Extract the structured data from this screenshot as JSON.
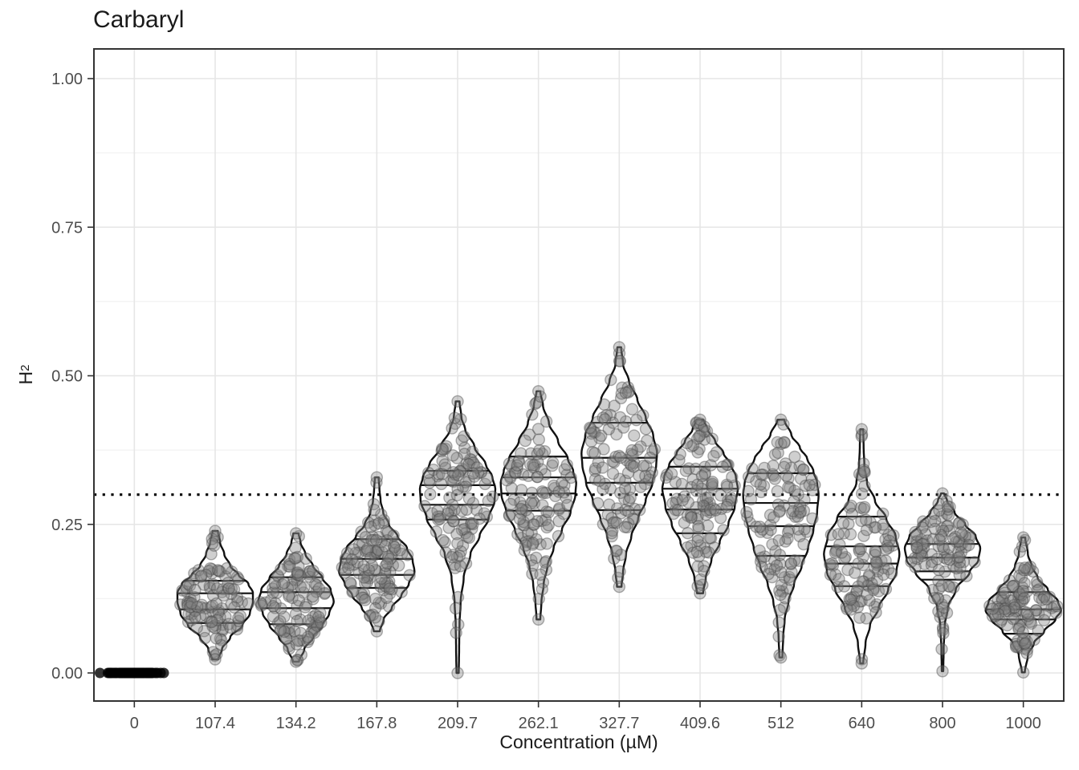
{
  "title": "Carbaryl",
  "axes": {
    "x": {
      "label": "Concentration (µM)",
      "categories": [
        "0",
        "107.4",
        "134.2",
        "167.8",
        "209.7",
        "262.1",
        "327.7",
        "409.6",
        "512",
        "640",
        "800",
        "1000"
      ]
    },
    "y": {
      "label_base": "H",
      "label_sup": "2",
      "tick_labels": [
        "0.00",
        "0.25",
        "0.50",
        "0.75",
        "1.00"
      ],
      "tick_values": [
        0,
        0.25,
        0.5,
        0.75,
        1.0
      ],
      "minor_grid_values": [
        0.125,
        0.375,
        0.625,
        0.875
      ]
    }
  },
  "colors": {
    "background": "#ffffff",
    "panel_border": "#333333",
    "grid_major": "#e6e6e6",
    "grid_minor": "#f2f2f2",
    "violin_outline": "#111111",
    "quantile_line": "#111111",
    "reference_line": "#000000",
    "point_fill": "rgba(130,130,130,0.38)",
    "point_stroke": "rgba(70,70,70,0.42)",
    "flat_point_fill": "rgba(0,0,0,0.8)",
    "tick_label": "#4d4d4d",
    "axis_tick": "#333333",
    "text": "#1a1a1a"
  },
  "chart_data": {
    "type": "violin",
    "title": "Carbaryl",
    "xlabel": "Concentration (µM)",
    "ylabel": "H^2",
    "ylim": [
      -0.047,
      1.05
    ],
    "grid": "major+minor",
    "legend": "none",
    "reference_line_y": 0.3,
    "reference_line_style": "dotted",
    "points_overlaid": true,
    "quantile_lines_drawn": [
      0.2,
      0.4,
      0.6,
      0.8
    ],
    "groups": [
      {
        "x_label": "0",
        "type": "flat",
        "value": 0.0,
        "n_points": 85
      },
      {
        "x_label": "107.4",
        "type": "violin",
        "min": 0.023,
        "max": 0.239,
        "quantile_lines": [
          0.084,
          0.107,
          0.134,
          0.155
        ],
        "n_points": 110,
        "profile": [
          [
            0.023,
            0.08
          ],
          [
            0.04,
            0.18
          ],
          [
            0.06,
            0.4
          ],
          [
            0.08,
            0.72
          ],
          [
            0.1,
            0.92
          ],
          [
            0.12,
            1.0
          ],
          [
            0.135,
            1.0
          ],
          [
            0.15,
            0.88
          ],
          [
            0.165,
            0.62
          ],
          [
            0.18,
            0.4
          ],
          [
            0.2,
            0.24
          ],
          [
            0.22,
            0.13
          ],
          [
            0.239,
            0.07
          ]
        ]
      },
      {
        "x_label": "134.2",
        "type": "violin",
        "min": 0.019,
        "max": 0.235,
        "quantile_lines": [
          0.082,
          0.109,
          0.136,
          0.161
        ],
        "n_points": 110,
        "profile": [
          [
            0.019,
            0.08
          ],
          [
            0.04,
            0.22
          ],
          [
            0.06,
            0.45
          ],
          [
            0.08,
            0.7
          ],
          [
            0.1,
            0.88
          ],
          [
            0.12,
            1.0
          ],
          [
            0.14,
            0.92
          ],
          [
            0.16,
            0.7
          ],
          [
            0.18,
            0.45
          ],
          [
            0.2,
            0.25
          ],
          [
            0.22,
            0.12
          ],
          [
            0.235,
            0.07
          ]
        ]
      },
      {
        "x_label": "167.8",
        "type": "violin",
        "min": 0.07,
        "max": 0.329,
        "quantile_lines": [
          0.143,
          0.165,
          0.192,
          0.225
        ],
        "n_points": 115,
        "profile": [
          [
            0.07,
            0.08
          ],
          [
            0.09,
            0.18
          ],
          [
            0.11,
            0.4
          ],
          [
            0.13,
            0.65
          ],
          [
            0.15,
            0.85
          ],
          [
            0.17,
            1.0
          ],
          [
            0.19,
            0.95
          ],
          [
            0.21,
            0.8
          ],
          [
            0.23,
            0.55
          ],
          [
            0.25,
            0.32
          ],
          [
            0.27,
            0.17
          ],
          [
            0.29,
            0.1
          ],
          [
            0.31,
            0.07
          ],
          [
            0.329,
            0.05
          ]
        ]
      },
      {
        "x_label": "209.7",
        "type": "violin",
        "min": 0.0,
        "max": 0.457,
        "quantile_lines": [
          0.258,
          0.283,
          0.316,
          0.34
        ],
        "n_points": 115,
        "profile": [
          [
            0.0,
            0.03
          ],
          [
            0.04,
            0.04
          ],
          [
            0.08,
            0.05
          ],
          [
            0.12,
            0.08
          ],
          [
            0.16,
            0.16
          ],
          [
            0.2,
            0.34
          ],
          [
            0.23,
            0.58
          ],
          [
            0.26,
            0.82
          ],
          [
            0.29,
            0.98
          ],
          [
            0.31,
            1.0
          ],
          [
            0.33,
            0.92
          ],
          [
            0.35,
            0.75
          ],
          [
            0.38,
            0.45
          ],
          [
            0.41,
            0.2
          ],
          [
            0.43,
            0.1
          ],
          [
            0.457,
            0.05
          ]
        ]
      },
      {
        "x_label": "262.1",
        "type": "violin",
        "min": 0.09,
        "max": 0.474,
        "quantile_lines": [
          0.273,
          0.302,
          0.329,
          0.364
        ],
        "n_points": 115,
        "profile": [
          [
            0.09,
            0.05
          ],
          [
            0.12,
            0.08
          ],
          [
            0.15,
            0.14
          ],
          [
            0.18,
            0.24
          ],
          [
            0.21,
            0.4
          ],
          [
            0.24,
            0.62
          ],
          [
            0.27,
            0.85
          ],
          [
            0.3,
            0.98
          ],
          [
            0.32,
            1.0
          ],
          [
            0.34,
            0.92
          ],
          [
            0.36,
            0.78
          ],
          [
            0.39,
            0.52
          ],
          [
            0.42,
            0.28
          ],
          [
            0.45,
            0.12
          ],
          [
            0.474,
            0.05
          ]
        ]
      },
      {
        "x_label": "327.7",
        "type": "violin",
        "min": 0.145,
        "max": 0.548,
        "quantile_lines": [
          0.274,
          0.32,
          0.362,
          0.421
        ],
        "n_points": 115,
        "profile": [
          [
            0.145,
            0.06
          ],
          [
            0.17,
            0.1
          ],
          [
            0.2,
            0.18
          ],
          [
            0.23,
            0.32
          ],
          [
            0.26,
            0.5
          ],
          [
            0.29,
            0.7
          ],
          [
            0.32,
            0.88
          ],
          [
            0.35,
            0.98
          ],
          [
            0.37,
            1.0
          ],
          [
            0.4,
            0.9
          ],
          [
            0.43,
            0.7
          ],
          [
            0.46,
            0.48
          ],
          [
            0.49,
            0.26
          ],
          [
            0.52,
            0.1
          ],
          [
            0.548,
            0.05
          ]
        ]
      },
      {
        "x_label": "409.6",
        "type": "violin",
        "min": 0.134,
        "max": 0.426,
        "quantile_lines": [
          0.235,
          0.275,
          0.31,
          0.347
        ],
        "n_points": 115,
        "profile": [
          [
            0.134,
            0.08
          ],
          [
            0.16,
            0.15
          ],
          [
            0.19,
            0.3
          ],
          [
            0.22,
            0.52
          ],
          [
            0.25,
            0.75
          ],
          [
            0.28,
            0.92
          ],
          [
            0.31,
            1.0
          ],
          [
            0.33,
            0.95
          ],
          [
            0.35,
            0.82
          ],
          [
            0.37,
            0.62
          ],
          [
            0.39,
            0.4
          ],
          [
            0.41,
            0.2
          ],
          [
            0.426,
            0.09
          ]
        ]
      },
      {
        "x_label": "512",
        "type": "violin",
        "min": 0.026,
        "max": 0.426,
        "quantile_lines": [
          0.197,
          0.247,
          0.286,
          0.336
        ],
        "n_points": 115,
        "profile": [
          [
            0.026,
            0.04
          ],
          [
            0.06,
            0.06
          ],
          [
            0.09,
            0.1
          ],
          [
            0.12,
            0.2
          ],
          [
            0.15,
            0.35
          ],
          [
            0.18,
            0.55
          ],
          [
            0.21,
            0.72
          ],
          [
            0.24,
            0.86
          ],
          [
            0.27,
            0.96
          ],
          [
            0.3,
            1.0
          ],
          [
            0.32,
            0.96
          ],
          [
            0.34,
            0.86
          ],
          [
            0.36,
            0.7
          ],
          [
            0.38,
            0.5
          ],
          [
            0.4,
            0.28
          ],
          [
            0.426,
            0.09
          ]
        ]
      },
      {
        "x_label": "640",
        "type": "violin",
        "min": 0.016,
        "max": 0.41,
        "quantile_lines": [
          0.146,
          0.184,
          0.213,
          0.263
        ],
        "n_points": 112,
        "profile": [
          [
            0.016,
            0.04
          ],
          [
            0.05,
            0.1
          ],
          [
            0.08,
            0.22
          ],
          [
            0.11,
            0.45
          ],
          [
            0.14,
            0.7
          ],
          [
            0.17,
            0.92
          ],
          [
            0.2,
            1.0
          ],
          [
            0.23,
            0.9
          ],
          [
            0.26,
            0.65
          ],
          [
            0.29,
            0.35
          ],
          [
            0.32,
            0.14
          ],
          [
            0.35,
            0.07
          ],
          [
            0.38,
            0.05
          ],
          [
            0.41,
            0.04
          ]
        ]
      },
      {
        "x_label": "800",
        "type": "violin",
        "min": 0.003,
        "max": 0.302,
        "quantile_lines": [
          0.157,
          0.171,
          0.194,
          0.217
        ],
        "n_points": 112,
        "profile": [
          [
            0.003,
            0.02
          ],
          [
            0.04,
            0.03
          ],
          [
            0.08,
            0.06
          ],
          [
            0.11,
            0.14
          ],
          [
            0.14,
            0.35
          ],
          [
            0.17,
            0.72
          ],
          [
            0.19,
            0.95
          ],
          [
            0.21,
            1.0
          ],
          [
            0.23,
            0.88
          ],
          [
            0.25,
            0.6
          ],
          [
            0.27,
            0.32
          ],
          [
            0.29,
            0.12
          ],
          [
            0.302,
            0.04
          ]
        ]
      },
      {
        "x_label": "1000",
        "type": "violin",
        "min": 0.001,
        "max": 0.228,
        "quantile_lines": [
          0.066,
          0.09,
          0.107,
          0.136
        ],
        "n_points": 110,
        "profile": [
          [
            0.001,
            0.04
          ],
          [
            0.03,
            0.12
          ],
          [
            0.05,
            0.28
          ],
          [
            0.07,
            0.55
          ],
          [
            0.09,
            0.85
          ],
          [
            0.105,
            1.0
          ],
          [
            0.12,
            0.92
          ],
          [
            0.14,
            0.65
          ],
          [
            0.16,
            0.38
          ],
          [
            0.18,
            0.22
          ],
          [
            0.2,
            0.12
          ],
          [
            0.228,
            0.05
          ]
        ]
      }
    ]
  }
}
